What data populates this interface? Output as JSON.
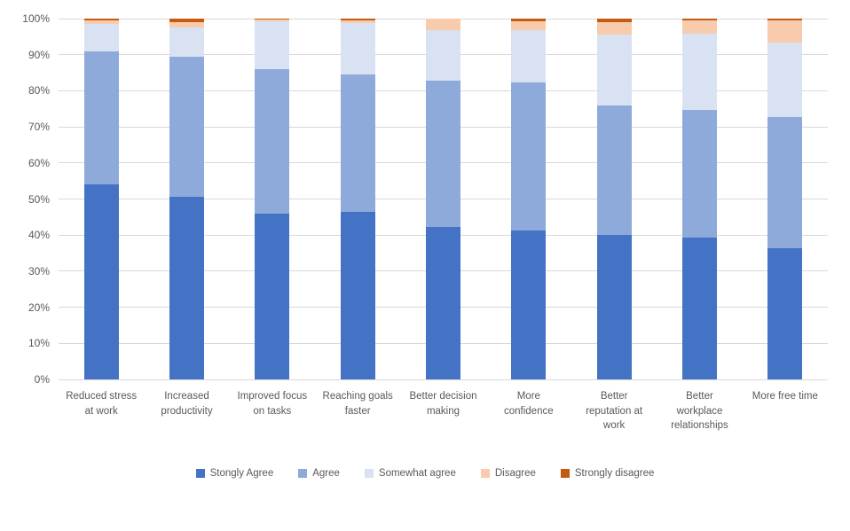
{
  "chart_data": {
    "type": "bar",
    "subtype": "stacked-100-percent-column",
    "title": "",
    "xlabel": "",
    "ylabel": "",
    "ylim": [
      0,
      100
    ],
    "grid": true,
    "legend_position": "bottom",
    "y_ticks": [
      "0%",
      "10%",
      "20%",
      "30%",
      "40%",
      "50%",
      "60%",
      "70%",
      "80%",
      "90%",
      "100%"
    ],
    "categories": [
      "Reduced stress\nat work",
      "Increased\nproductivity",
      "Improved focus\non tasks",
      "Reaching goals\nfaster",
      "Better decision\nmaking",
      "More\nconfidence",
      "Better\nreputation at\nwork",
      "Better\nworkplace\nrelationships",
      "More free time"
    ],
    "series": [
      {
        "name": "Stongly Agree",
        "color": "#4472c4",
        "values": [
          54.0,
          50.5,
          46.0,
          46.4,
          42.3,
          41.2,
          40.0,
          39.2,
          36.3
        ]
      },
      {
        "name": "Agree",
        "color": "#8eaadb",
        "values": [
          37.0,
          39.0,
          40.0,
          38.0,
          40.5,
          41.1,
          36.0,
          35.6,
          36.4
        ]
      },
      {
        "name": "Somewhat agree",
        "color": "#d9e2f2",
        "values": [
          7.5,
          8.0,
          13.3,
          14.4,
          14.0,
          14.4,
          19.6,
          21.0,
          20.7
        ]
      },
      {
        "name": "Disagree",
        "color": "#f8cbad",
        "values": [
          1.0,
          1.5,
          0.4,
          0.7,
          3.2,
          2.6,
          3.3,
          3.6,
          6.1
        ]
      },
      {
        "name": "Strongly disagree",
        "color": "#c55a11",
        "values": [
          0.5,
          1.0,
          0.3,
          0.5,
          0.0,
          0.7,
          1.1,
          0.6,
          0.5
        ]
      }
    ],
    "axis_text_color": "#595959",
    "gridline_color": "#d9d9d9"
  }
}
